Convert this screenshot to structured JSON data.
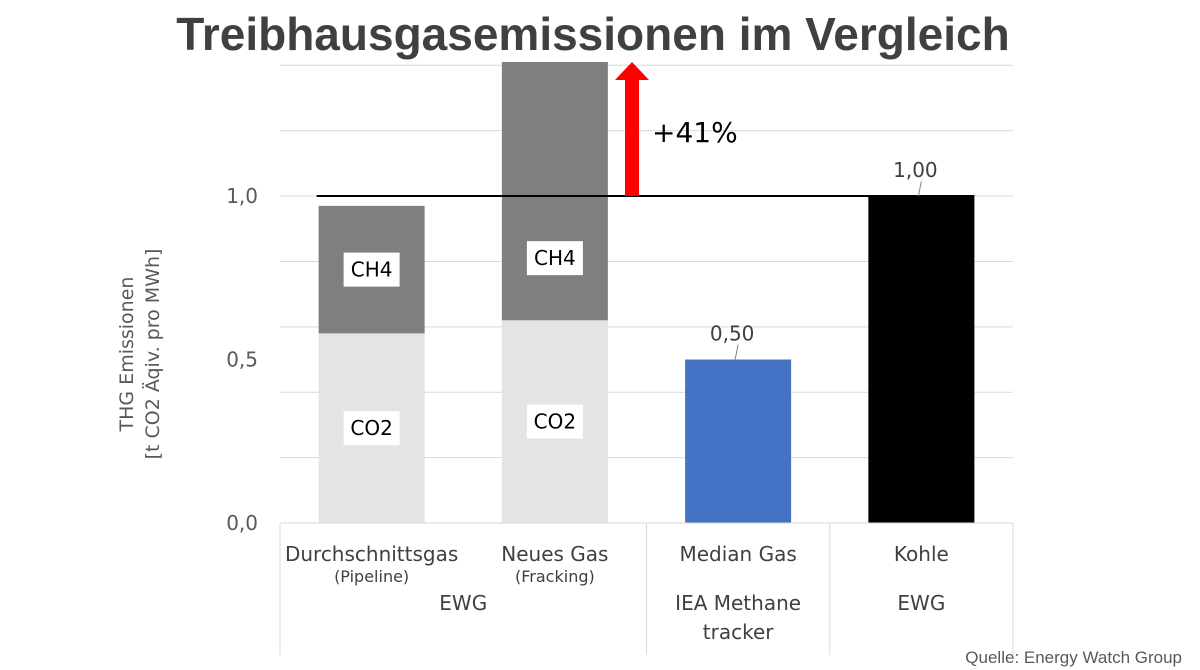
{
  "chart_data": {
    "type": "bar",
    "title": "Treibhausgasemissionen im Vergleich",
    "ylabel": [
      "THG Emissionen",
      "[t CO2 Äqiv. pro MWh]"
    ],
    "ylim": [
      0,
      1.41
    ],
    "yticks": [
      {
        "value": 0.0,
        "label": "0,0"
      },
      {
        "value": 0.5,
        "label": "0,5"
      },
      {
        "value": 1.0,
        "label": "1,0"
      }
    ],
    "grid": true,
    "reference_line": 1.0,
    "categories": [
      {
        "name": "Durchschnittsgas",
        "sub": "(Pipeline)"
      },
      {
        "name": "Neues Gas",
        "sub": "(Fracking)"
      },
      {
        "name": "Median  Gas",
        "sub": ""
      },
      {
        "name": "Kohle",
        "sub": ""
      }
    ],
    "groups": [
      {
        "label": [
          "EWG"
        ],
        "span": [
          0,
          1
        ]
      },
      {
        "label": [
          "IEA Methane",
          "tracker"
        ],
        "span": [
          2,
          2
        ]
      },
      {
        "label": [
          "EWG"
        ],
        "span": [
          3,
          3
        ]
      }
    ],
    "series": [
      {
        "name": "CO2",
        "values": [
          0.58,
          0.62,
          null,
          null
        ],
        "color": "#e5e3e4"
      },
      {
        "name": "CH4",
        "values": [
          0.39,
          0.79,
          null,
          null
        ],
        "color": "#7f7f7f"
      },
      {
        "name": "Median Gas",
        "values": [
          null,
          null,
          0.5,
          null
        ],
        "color": "#4472c4"
      },
      {
        "name": "Kohle",
        "values": [
          null,
          null,
          null,
          1.0
        ],
        "color": "#000000"
      }
    ],
    "data_labels": [
      {
        "category": 2,
        "value": 0.5,
        "text": "0,50"
      },
      {
        "category": 3,
        "value": 1.0,
        "text": "1,00"
      }
    ],
    "annotation": {
      "text": "+41%",
      "from": 1.0,
      "to": 1.41,
      "color": "#ff0000"
    }
  },
  "source": "Quelle: Energy Watch Group"
}
